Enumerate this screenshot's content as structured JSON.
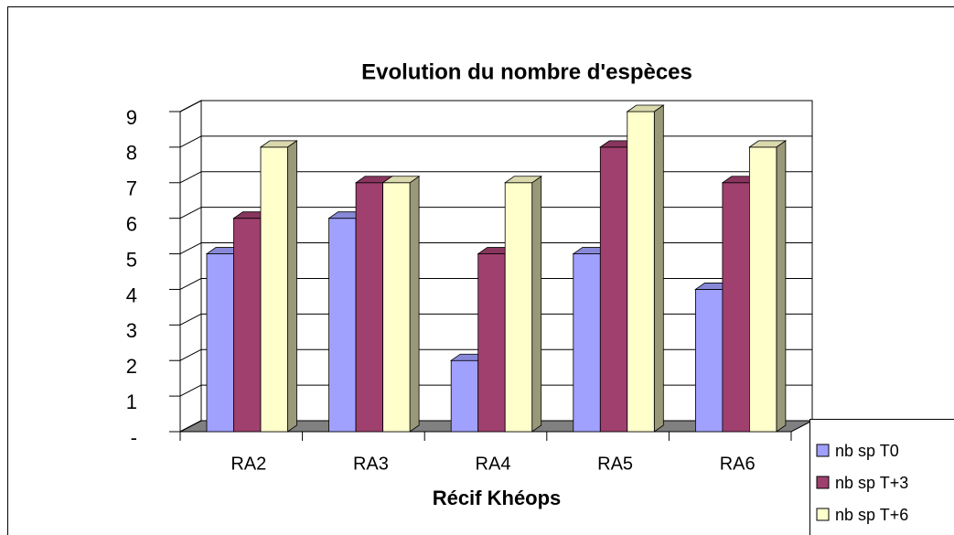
{
  "chart_data": {
    "type": "bar3d",
    "title": "Evolution du nombre d'espèces",
    "x_label": "Récif Khéops",
    "categories": [
      "RA2",
      "RA3",
      "RA4",
      "RA5",
      "RA6"
    ],
    "series": [
      {
        "name": "nb sp T0",
        "color": "#a0a0ff",
        "values": [
          5,
          6,
          2,
          5,
          4
        ]
      },
      {
        "name": "nb sp T+3",
        "color": "#a0406e",
        "values": [
          6,
          7,
          5,
          8,
          7
        ]
      },
      {
        "name": "nb sp T+6",
        "color": "#ffffcc",
        "values": [
          8,
          7,
          7,
          9,
          8
        ]
      }
    ],
    "ylim": [
      0,
      9
    ],
    "yticks": [
      {
        "value": 0,
        "label": "-"
      },
      1,
      2,
      3,
      4,
      5,
      6,
      7,
      8,
      9
    ],
    "grid": true,
    "legend": "right"
  }
}
